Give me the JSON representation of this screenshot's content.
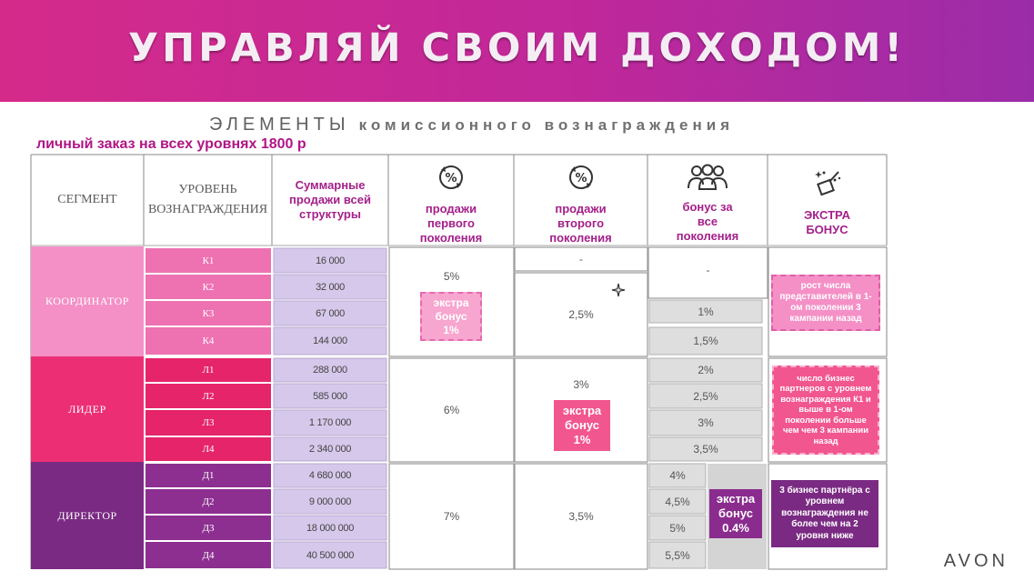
{
  "header": {
    "title": "УПРАВЛЯЙ СВОИМ  ДОХОДОМ!"
  },
  "subtitle": {
    "word1": "ЭЛЕМЕНТЫ",
    "word2": "комиссионного вознаграждения"
  },
  "personal_order": "личный заказ  на всех уровнях 1800 р",
  "columns": {
    "segment": "СЕГМЕНТ",
    "level": "УРОВЕНЬ ВОЗНАГРАЖДЕНИЯ",
    "total_sales": "Суммарные продажи всей структуры",
    "first_gen": "продажи первого поколения",
    "second_gen": "продажи второго поколения",
    "all_gen": "бонус за все поколения",
    "extra": "ЭКСТРА БОНУС"
  },
  "segments": {
    "coordinator": "КООРДИНАТОР",
    "leader": "ЛИДЕР",
    "director": "ДИРЕКТОР"
  },
  "rows": [
    {
      "level": "К1",
      "sales": "16 000"
    },
    {
      "level": "К2",
      "sales": "32 000"
    },
    {
      "level": "К3",
      "sales": "67 000"
    },
    {
      "level": "К4",
      "sales": "144 000"
    },
    {
      "level": "Л1",
      "sales": "288 000"
    },
    {
      "level": "Л2",
      "sales": "585 000"
    },
    {
      "level": "Л3",
      "sales": "1 170 000"
    },
    {
      "level": "Л4",
      "sales": "2 340 000"
    },
    {
      "level": "Д1",
      "sales": "4 680 000"
    },
    {
      "level": "Д2",
      "sales": "9 000 000"
    },
    {
      "level": "Д3",
      "sales": "18 000 000"
    },
    {
      "level": "Д4",
      "sales": "40 500 000"
    }
  ],
  "first_gen": {
    "coordinator": "5%",
    "leader": "6%",
    "director": "7%"
  },
  "second_gen": {
    "k1": "-",
    "coordinator": "2,5%",
    "leader": "3%",
    "director": "3,5%"
  },
  "all_gen": {
    "k1_k2": "-",
    "k3": "1%",
    "k4": "1,5%",
    "l1": "2%",
    "l2": "2,5%",
    "l3": "3%",
    "l4": "3,5%",
    "d1": "4%",
    "d2": "4,5%",
    "d3": "5%",
    "d4": "5,5%"
  },
  "extra_badges": {
    "first_gen_coordinator": "экстра бонус 1%",
    "second_gen_leader": "экстра бонус 1%",
    "all_gen_director": "экстра бонус 0.4%"
  },
  "extra_column": {
    "coordinator": "рост числа представителей в 1-ом поколении 3 кампании назад",
    "leader": "число бизнес партнеров с уровнем вознаграждения К1 и выше в 1-ом поколении больше чем чем 3 кампании назад",
    "director": "3 бизнес партнёра с уровнем вознаграждения не более чем на 2 уровня ниже"
  },
  "brand": "AVON",
  "colors": {
    "banner_start": "#d42a8a",
    "banner_end": "#9b2ca8",
    "coordinator": "#f490c6",
    "coordinator_levels": "#ee72b2",
    "leader": "#ec2f75",
    "leader_levels": "#e5246a",
    "director": "#7a2a82",
    "director_levels": "#8c2f90",
    "sales_fill": "#d6c8ea",
    "accent_text": "#a4208a"
  }
}
